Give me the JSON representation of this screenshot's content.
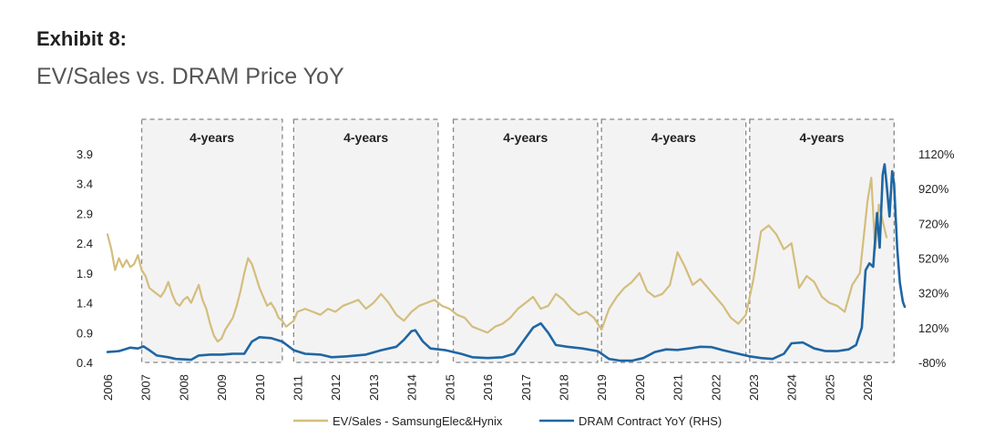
{
  "header": {
    "exhibit": "Exhibit 8:",
    "subtitle": "EV/Sales vs. DRAM Price YoY"
  },
  "colors": {
    "ev_sales": "#d4bd7d",
    "dram": "#1f66a3",
    "region_fill": "#f3f3f3",
    "region_border": "#888888"
  },
  "chart_data": {
    "type": "line",
    "title": "EV/Sales vs. DRAM Price YoY",
    "x_range": [
      2006,
      2026.98
    ],
    "x_ticks": [
      "2006",
      "2007",
      "2008",
      "2009",
      "2010",
      "2011",
      "2012",
      "2013",
      "2014",
      "2015",
      "2016",
      "2017",
      "2018",
      "2019",
      "2020",
      "2021",
      "2022",
      "2023",
      "2024",
      "2025",
      "2026"
    ],
    "y_left": {
      "ylim": [
        0.4,
        3.9
      ],
      "ticks": [
        "3.9",
        "3.4",
        "2.9",
        "2.4",
        "1.9",
        "1.4",
        "0.9",
        "0.4"
      ],
      "tick_values": [
        3.9,
        3.4,
        2.9,
        2.4,
        1.9,
        1.4,
        0.9,
        0.4
      ]
    },
    "y_right": {
      "ylim": [
        -80,
        1120
      ],
      "ticks": [
        "1120%",
        "920%",
        "720%",
        "520%",
        "320%",
        "120%",
        "-80%"
      ],
      "tick_values": [
        1120,
        920,
        720,
        520,
        320,
        120,
        -80
      ]
    },
    "regions": [
      {
        "start": 2006.9,
        "end": 2010.6,
        "label": "4-years"
      },
      {
        "start": 2010.9,
        "end": 2014.7,
        "label": "4-years"
      },
      {
        "start": 2015.1,
        "end": 2018.9,
        "label": "4-years"
      },
      {
        "start": 2019.0,
        "end": 2022.8,
        "label": "4-years"
      },
      {
        "start": 2022.9,
        "end": 2026.7,
        "label": "4-years"
      }
    ],
    "series": [
      {
        "name": "EV/Sales - SamsungElec&Hynix",
        "axis": "left",
        "points": [
          [
            2006.0,
            2.55
          ],
          [
            2006.1,
            2.3
          ],
          [
            2006.2,
            1.95
          ],
          [
            2006.3,
            2.15
          ],
          [
            2006.4,
            2.0
          ],
          [
            2006.5,
            2.12
          ],
          [
            2006.6,
            2.0
          ],
          [
            2006.7,
            2.05
          ],
          [
            2006.8,
            2.2
          ],
          [
            2006.9,
            1.95
          ],
          [
            2007.0,
            1.85
          ],
          [
            2007.1,
            1.65
          ],
          [
            2007.2,
            1.6
          ],
          [
            2007.3,
            1.55
          ],
          [
            2007.4,
            1.5
          ],
          [
            2007.5,
            1.6
          ],
          [
            2007.6,
            1.75
          ],
          [
            2007.7,
            1.55
          ],
          [
            2007.8,
            1.4
          ],
          [
            2007.9,
            1.35
          ],
          [
            2008.0,
            1.45
          ],
          [
            2008.1,
            1.5
          ],
          [
            2008.2,
            1.4
          ],
          [
            2008.3,
            1.55
          ],
          [
            2008.4,
            1.7
          ],
          [
            2008.5,
            1.45
          ],
          [
            2008.6,
            1.3
          ],
          [
            2008.7,
            1.05
          ],
          [
            2008.8,
            0.85
          ],
          [
            2008.9,
            0.75
          ],
          [
            2009.0,
            0.8
          ],
          [
            2009.1,
            0.95
          ],
          [
            2009.2,
            1.05
          ],
          [
            2009.3,
            1.15
          ],
          [
            2009.4,
            1.35
          ],
          [
            2009.5,
            1.6
          ],
          [
            2009.6,
            1.9
          ],
          [
            2009.7,
            2.15
          ],
          [
            2009.8,
            2.05
          ],
          [
            2009.9,
            1.85
          ],
          [
            2010.0,
            1.65
          ],
          [
            2010.1,
            1.5
          ],
          [
            2010.2,
            1.35
          ],
          [
            2010.3,
            1.4
          ],
          [
            2010.4,
            1.3
          ],
          [
            2010.5,
            1.15
          ],
          [
            2010.6,
            1.1
          ],
          [
            2010.7,
            1.0
          ],
          [
            2010.8,
            1.05
          ],
          [
            2010.9,
            1.1
          ],
          [
            2011.0,
            1.25
          ],
          [
            2011.2,
            1.3
          ],
          [
            2011.4,
            1.25
          ],
          [
            2011.6,
            1.2
          ],
          [
            2011.8,
            1.3
          ],
          [
            2012.0,
            1.25
          ],
          [
            2012.2,
            1.35
          ],
          [
            2012.4,
            1.4
          ],
          [
            2012.6,
            1.45
          ],
          [
            2012.8,
            1.3
          ],
          [
            2013.0,
            1.4
          ],
          [
            2013.2,
            1.55
          ],
          [
            2013.4,
            1.4
          ],
          [
            2013.6,
            1.2
          ],
          [
            2013.8,
            1.1
          ],
          [
            2014.0,
            1.25
          ],
          [
            2014.2,
            1.35
          ],
          [
            2014.4,
            1.4
          ],
          [
            2014.6,
            1.45
          ],
          [
            2014.8,
            1.35
          ],
          [
            2015.0,
            1.3
          ],
          [
            2015.2,
            1.2
          ],
          [
            2015.4,
            1.15
          ],
          [
            2015.6,
            1.0
          ],
          [
            2015.8,
            0.95
          ],
          [
            2016.0,
            0.9
          ],
          [
            2016.2,
            1.0
          ],
          [
            2016.4,
            1.05
          ],
          [
            2016.6,
            1.15
          ],
          [
            2016.8,
            1.3
          ],
          [
            2017.0,
            1.4
          ],
          [
            2017.2,
            1.5
          ],
          [
            2017.4,
            1.3
          ],
          [
            2017.6,
            1.35
          ],
          [
            2017.8,
            1.55
          ],
          [
            2018.0,
            1.45
          ],
          [
            2018.2,
            1.3
          ],
          [
            2018.4,
            1.2
          ],
          [
            2018.6,
            1.25
          ],
          [
            2018.8,
            1.15
          ],
          [
            2019.0,
            0.95
          ],
          [
            2019.2,
            1.3
          ],
          [
            2019.4,
            1.5
          ],
          [
            2019.6,
            1.65
          ],
          [
            2019.8,
            1.75
          ],
          [
            2020.0,
            1.9
          ],
          [
            2020.2,
            1.6
          ],
          [
            2020.4,
            1.5
          ],
          [
            2020.6,
            1.55
          ],
          [
            2020.8,
            1.7
          ],
          [
            2021.0,
            2.25
          ],
          [
            2021.2,
            2.0
          ],
          [
            2021.4,
            1.7
          ],
          [
            2021.6,
            1.8
          ],
          [
            2021.8,
            1.65
          ],
          [
            2022.0,
            1.5
          ],
          [
            2022.2,
            1.35
          ],
          [
            2022.4,
            1.15
          ],
          [
            2022.6,
            1.05
          ],
          [
            2022.8,
            1.2
          ],
          [
            2023.0,
            1.8
          ],
          [
            2023.2,
            2.6
          ],
          [
            2023.4,
            2.7
          ],
          [
            2023.6,
            2.55
          ],
          [
            2023.8,
            2.3
          ],
          [
            2024.0,
            2.4
          ],
          [
            2024.2,
            1.65
          ],
          [
            2024.4,
            1.85
          ],
          [
            2024.6,
            1.75
          ],
          [
            2024.8,
            1.5
          ],
          [
            2025.0,
            1.4
          ],
          [
            2025.2,
            1.35
          ],
          [
            2025.4,
            1.25
          ],
          [
            2025.6,
            1.7
          ],
          [
            2025.8,
            1.9
          ],
          [
            2026.0,
            3.1
          ],
          [
            2026.1,
            3.5
          ],
          [
            2026.2,
            2.3
          ],
          [
            2026.3,
            3.05
          ],
          [
            2026.5,
            2.5
          ]
        ]
      },
      {
        "name": "DRAM Contract YoY (RHS)",
        "axis": "right",
        "points": [
          [
            2006.0,
            -20
          ],
          [
            2006.3,
            -15
          ],
          [
            2006.6,
            5
          ],
          [
            2006.8,
            0
          ],
          [
            2006.95,
            12
          ],
          [
            2007.1,
            -10
          ],
          [
            2007.3,
            -40
          ],
          [
            2007.6,
            -50
          ],
          [
            2007.8,
            -60
          ],
          [
            2008.2,
            -65
          ],
          [
            2008.4,
            -40
          ],
          [
            2008.7,
            -35
          ],
          [
            2009.0,
            -35
          ],
          [
            2009.3,
            -30
          ],
          [
            2009.6,
            -30
          ],
          [
            2009.8,
            40
          ],
          [
            2010.0,
            65
          ],
          [
            2010.3,
            60
          ],
          [
            2010.6,
            40
          ],
          [
            2010.9,
            -10
          ],
          [
            2011.2,
            -30
          ],
          [
            2011.6,
            -35
          ],
          [
            2011.9,
            -50
          ],
          [
            2012.3,
            -45
          ],
          [
            2012.8,
            -35
          ],
          [
            2013.2,
            -10
          ],
          [
            2013.6,
            10
          ],
          [
            2013.8,
            50
          ],
          [
            2014.0,
            100
          ],
          [
            2014.1,
            105
          ],
          [
            2014.3,
            40
          ],
          [
            2014.5,
            0
          ],
          [
            2014.9,
            -10
          ],
          [
            2015.3,
            -30
          ],
          [
            2015.6,
            -50
          ],
          [
            2016.0,
            -55
          ],
          [
            2016.4,
            -50
          ],
          [
            2016.7,
            -30
          ],
          [
            2016.9,
            30
          ],
          [
            2017.2,
            120
          ],
          [
            2017.4,
            145
          ],
          [
            2017.6,
            90
          ],
          [
            2017.8,
            20
          ],
          [
            2018.1,
            10
          ],
          [
            2018.5,
            0
          ],
          [
            2018.9,
            -15
          ],
          [
            2019.2,
            -60
          ],
          [
            2019.5,
            -70
          ],
          [
            2019.8,
            -70
          ],
          [
            2020.1,
            -55
          ],
          [
            2020.4,
            -20
          ],
          [
            2020.7,
            -5
          ],
          [
            2021.0,
            -8
          ],
          [
            2021.3,
            0
          ],
          [
            2021.6,
            10
          ],
          [
            2021.9,
            8
          ],
          [
            2022.2,
            -10
          ],
          [
            2022.6,
            -30
          ],
          [
            2022.9,
            -45
          ],
          [
            2023.2,
            -55
          ],
          [
            2023.5,
            -60
          ],
          [
            2023.8,
            -30
          ],
          [
            2024.0,
            30
          ],
          [
            2024.3,
            35
          ],
          [
            2024.6,
            0
          ],
          [
            2024.9,
            -15
          ],
          [
            2025.2,
            -15
          ],
          [
            2025.5,
            -5
          ],
          [
            2025.7,
            20
          ],
          [
            2025.85,
            120
          ],
          [
            2025.95,
            450
          ],
          [
            2026.05,
            490
          ],
          [
            2026.15,
            470
          ],
          [
            2026.25,
            780
          ],
          [
            2026.32,
            580
          ],
          [
            2026.4,
            1000
          ],
          [
            2026.45,
            1060
          ],
          [
            2026.5,
            950
          ],
          [
            2026.58,
            760
          ],
          [
            2026.65,
            1020
          ],
          [
            2026.7,
            950
          ],
          [
            2026.78,
            580
          ],
          [
            2026.85,
            380
          ],
          [
            2026.93,
            270
          ],
          [
            2026.98,
            240
          ]
        ]
      }
    ],
    "legend": {
      "placement": "bottom",
      "entries": [
        "EV/Sales - SamsungElec&Hynix",
        "DRAM Contract YoY (RHS)"
      ]
    }
  }
}
